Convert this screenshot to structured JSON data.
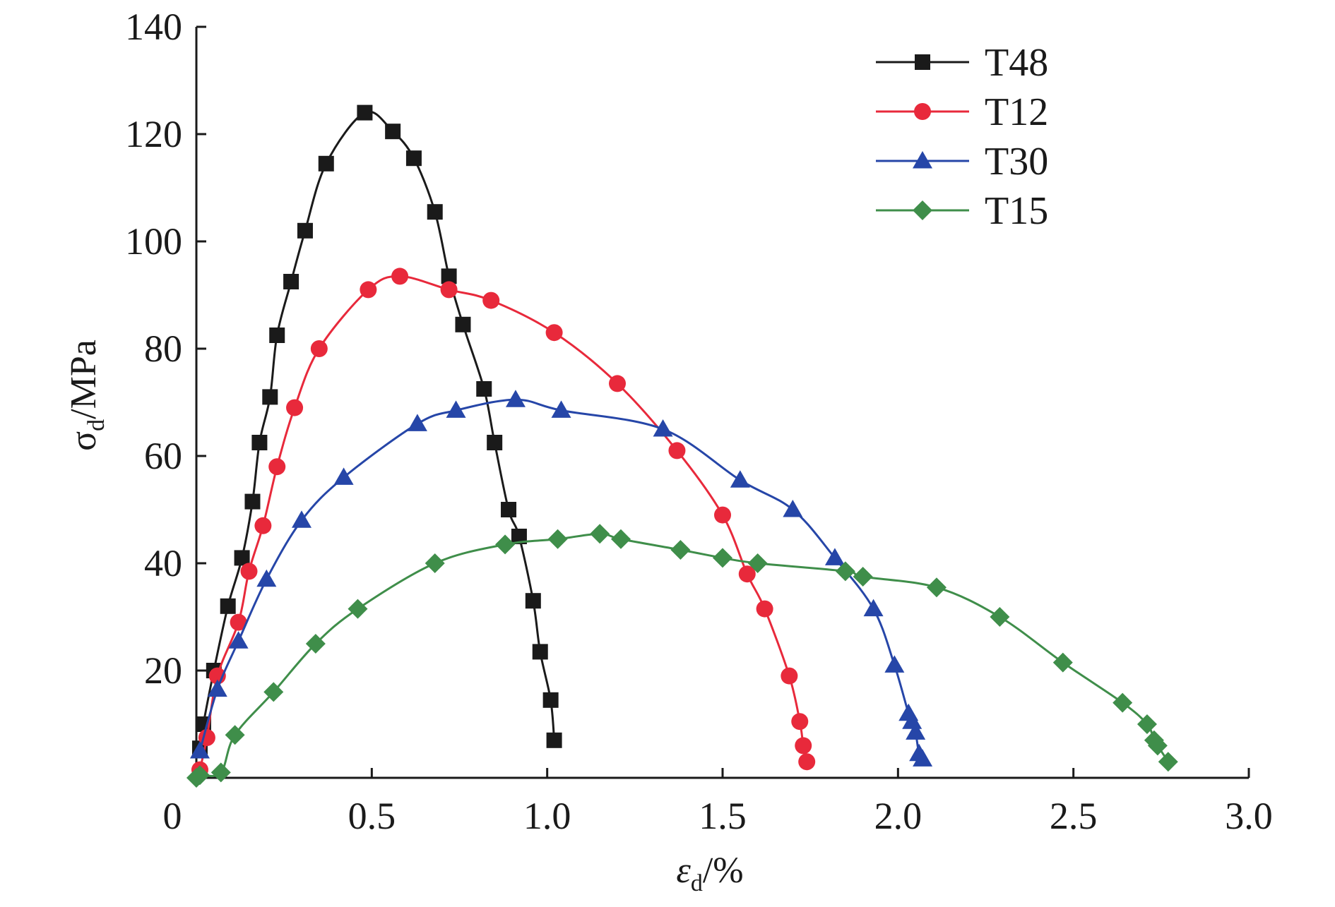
{
  "chart_data": {
    "type": "line",
    "xlabel": "ε",
    "xlabel_sub": "d",
    "xlabel_unit": "/%",
    "ylabel": "σ",
    "ylabel_sub": "d",
    "ylabel_unit": "/MPa",
    "xlim": [
      0,
      3.0
    ],
    "ylim": [
      0,
      140
    ],
    "xticks": [
      0,
      0.5,
      1.0,
      1.5,
      2.0,
      2.5,
      3.0
    ],
    "xtick_labels": [
      "0",
      "0.5",
      "1.0",
      "1.5",
      "2.0",
      "2.5",
      "3.0"
    ],
    "yticks": [
      20,
      40,
      60,
      80,
      100,
      120,
      140
    ],
    "ytick_labels": [
      "20",
      "40",
      "60",
      "80",
      "100",
      "120",
      "140"
    ],
    "grid": false,
    "legend_position": "top-right",
    "series": [
      {
        "name": "T48",
        "color": "#1a1a1a",
        "marker": "square",
        "x": [
          0.01,
          0.02,
          0.05,
          0.09,
          0.13,
          0.16,
          0.18,
          0.21,
          0.23,
          0.27,
          0.31,
          0.37,
          0.48,
          0.56,
          0.62,
          0.68,
          0.72,
          0.76,
          0.82,
          0.85,
          0.89,
          0.92,
          0.96,
          0.98,
          1.01,
          1.02
        ],
        "y": [
          5.5,
          10,
          20,
          32,
          41,
          51.5,
          62.5,
          71,
          82.5,
          92.5,
          102,
          114.5,
          124,
          120.5,
          115.5,
          105.5,
          93.5,
          84.5,
          72.5,
          62.5,
          50,
          45,
          33,
          23.5,
          14.5,
          7
        ]
      },
      {
        "name": "T12",
        "color": "#e8293b",
        "marker": "circle",
        "x": [
          0.01,
          0.03,
          0.06,
          0.12,
          0.15,
          0.19,
          0.23,
          0.28,
          0.35,
          0.49,
          0.58,
          0.72,
          0.84,
          1.02,
          1.2,
          1.37,
          1.5,
          1.57,
          1.62,
          1.69,
          1.72,
          1.73,
          1.74
        ],
        "y": [
          1.5,
          7.5,
          19,
          29,
          38.5,
          47,
          58,
          69,
          80,
          91,
          93.5,
          91,
          89,
          83,
          73.5,
          61,
          49,
          38,
          31.5,
          19,
          10.5,
          6,
          3
        ]
      },
      {
        "name": "T30",
        "color": "#2646a8",
        "marker": "triangle",
        "x": [
          0.01,
          0.06,
          0.12,
          0.2,
          0.3,
          0.42,
          0.63,
          0.74,
          0.91,
          1.04,
          1.33,
          1.55,
          1.7,
          1.82,
          1.93,
          1.99,
          2.03,
          2.04,
          2.05,
          2.06,
          2.07
        ],
        "y": [
          5,
          16.5,
          25.5,
          37,
          48,
          56,
          66,
          68.5,
          70.5,
          68.5,
          65,
          55.5,
          50,
          41,
          31.5,
          21,
          12,
          10.5,
          8.5,
          4.5,
          3.5
        ]
      },
      {
        "name": "T15",
        "color": "#3f8e4a",
        "marker": "diamond",
        "x": [
          0.0,
          0.01,
          0.07,
          0.11,
          0.22,
          0.34,
          0.46,
          0.68,
          0.88,
          1.03,
          1.15,
          1.21,
          1.38,
          1.5,
          1.6,
          1.85,
          1.9,
          2.11,
          2.29,
          2.47,
          2.64,
          2.71,
          2.73,
          2.74,
          2.77
        ],
        "y": [
          0,
          0.5,
          1,
          8,
          16,
          25,
          31.5,
          40,
          43.5,
          44.5,
          45.5,
          44.5,
          42.5,
          41,
          40,
          38.5,
          37.5,
          35.5,
          30,
          21.5,
          14,
          10,
          7,
          6,
          3
        ]
      }
    ]
  }
}
